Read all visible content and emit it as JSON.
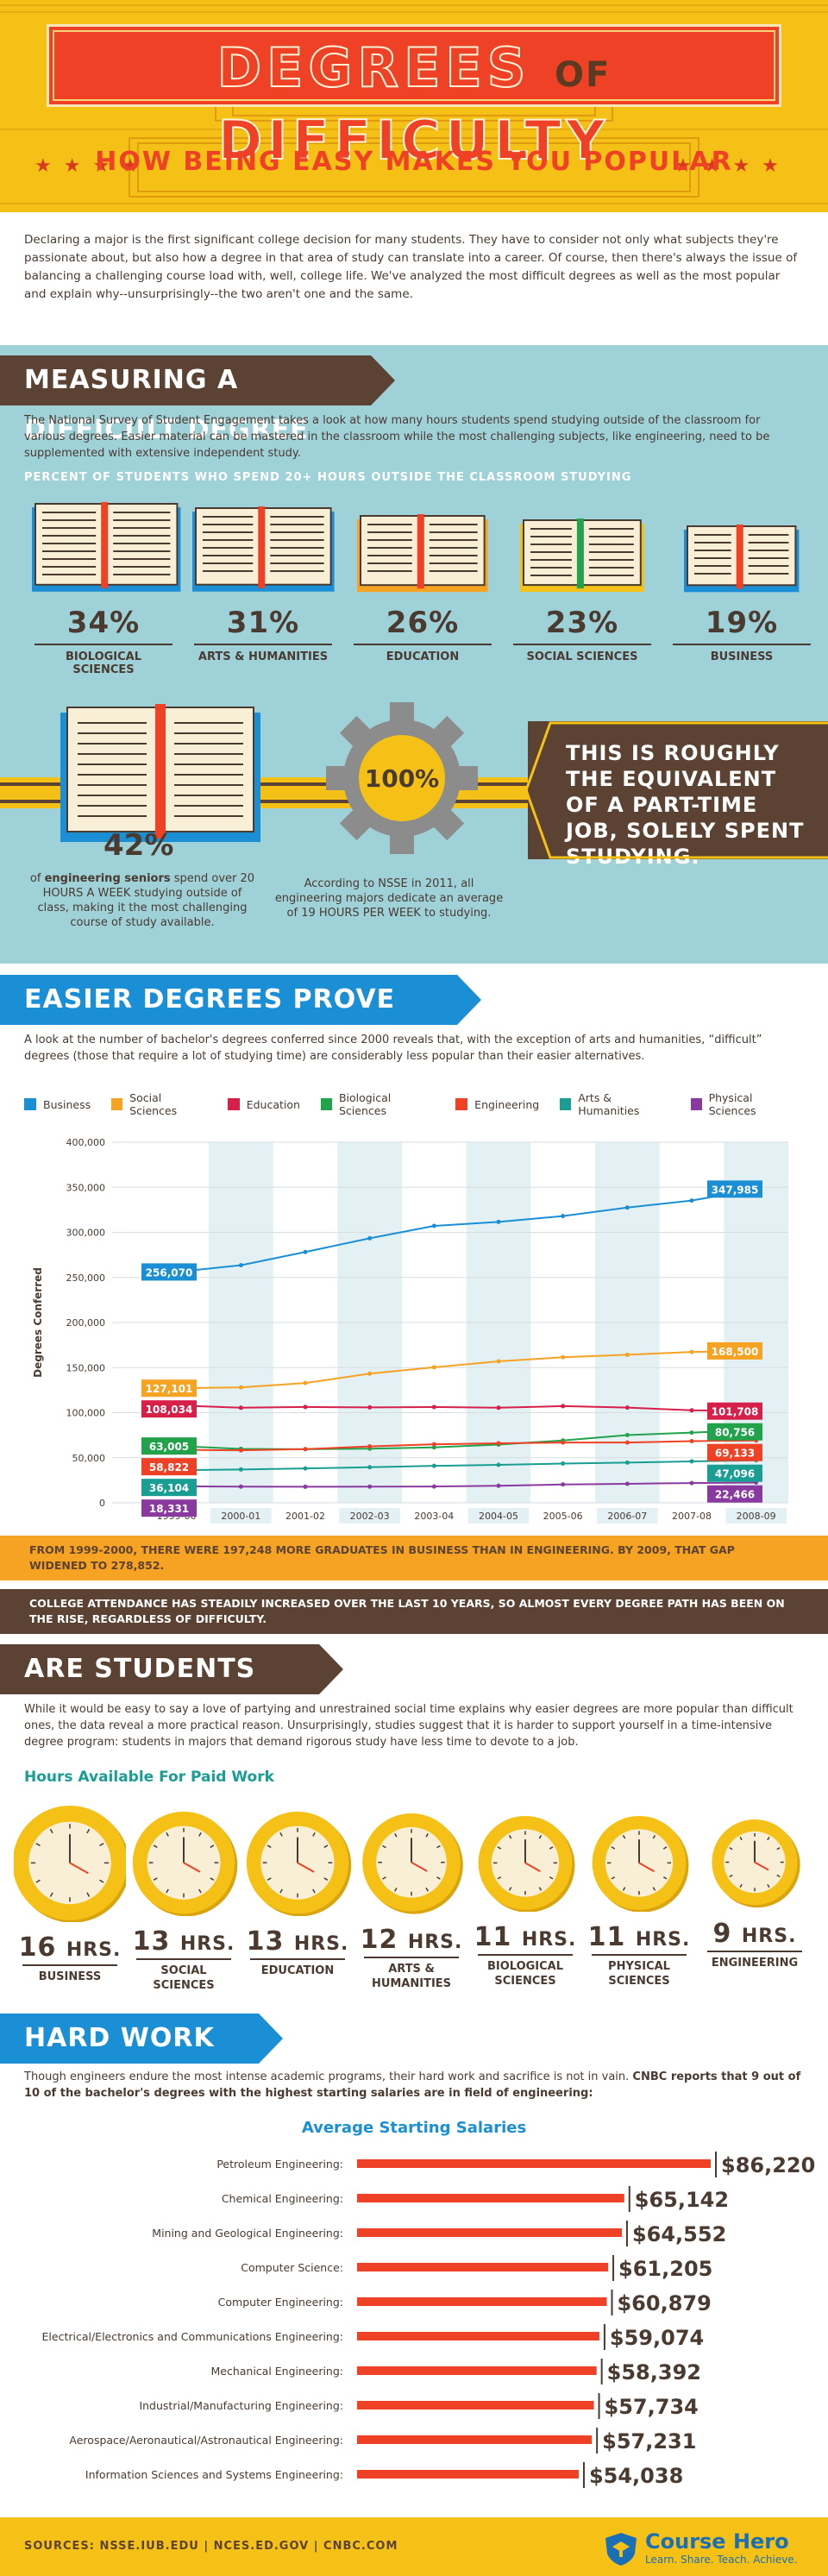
{
  "header": {
    "title_left": "DEGREES",
    "title_of": "OF",
    "title_right": "DIFFICULTY",
    "subtitle": "HOW BEING EASY MAKES YOU POPULAR"
  },
  "intro": "Declaring a major is the first significant college decision for many students. They have to consider not only what subjects they're passionate about, but also how a degree in that area of study can translate into a career. Of course, then there's always the issue of balancing a challenging course load with, well, college life. We've analyzed the most difficult degrees as well as the most popular and explain why--unsurprisingly--the two aren't one and the same.",
  "section1": {
    "title": "MEASURING A DIFFICULT DEGREE",
    "para": "The National Survey of Student Engagement takes a look at how many hours students spend studying outside of the classroom for various degrees. Easier material can be mastered in the classroom while the most challenging subjects, like engineering, need to be supplemented with extensive independent study.",
    "subhead": "PERCENT OF STUDENTS WHO SPEND 20+ HOURS OUTSIDE THE CLASSROOM STUDYING",
    "books": [
      {
        "pct": "34%",
        "label": "BIOLOGICAL SCIENCES",
        "value": 34
      },
      {
        "pct": "31%",
        "label": "ARTS & HUMANITIES",
        "value": 31
      },
      {
        "pct": "26%",
        "label": "EDUCATION",
        "value": 26
      },
      {
        "pct": "23%",
        "label": "SOCIAL SCIENCES",
        "value": 23
      },
      {
        "pct": "19%",
        "label": "BUSINESS",
        "value": 19
      }
    ],
    "eng_pct": "42%",
    "eng_desc_pre": "of ",
    "eng_desc_bold": "engineering seniors",
    "eng_desc_post": " spend over 20 HOURS A WEEK studying outside of class, making it the most challenging course of study available.",
    "gear_pct": "100%",
    "nsse_desc": "According to NSSE in 2011, all engineering majors dedicate an average of 19 HOURS PER WEEK to studying.",
    "box_text": "THIS IS ROUGHLY THE EQUIVALENT OF A PART-TIME JOB, SOLELY SPENT STUDYING."
  },
  "section2": {
    "title": "EASIER DEGREES PROVE MORE POPULAR",
    "para": "A look at the number of bachelor's degrees conferred since 2000 reveals that, with the exception of arts and humanities, “difficult” degrees (those that require a lot of studying time) are considerably less popular than their easier alternatives.",
    "callout1": "FROM 1999-2000, THERE WERE 197,248 MORE GRADUATES IN BUSINESS THAN IN ENGINEERING. BY 2009, THAT GAP WIDENED TO 278,852.",
    "callout2": "COLLEGE ATTENDANCE HAS STEADILY INCREASED OVER THE LAST 10 YEARS, SO ALMOST EVERY DEGREE PATH HAS BEEN ON THE RISE, REGARDLESS OF DIFFICULTY."
  },
  "section3": {
    "title": "ARE STUDENTS JUST LAZY?",
    "para": "While it would be easy to say a love of partying and unrestrained social time explains why easier degrees are more popular than difficult ones, the data reveal a more practical reason. Unsurprisingly, studies suggest that it is harder to support yourself in a time-intensive degree program: students in majors that demand rigorous study have less time to devote to a job.",
    "subhead": "Hours Available For Paid Work",
    "unit": "HRS.",
    "clocks": [
      {
        "hours": "16",
        "label": "BUSINESS",
        "value": 16
      },
      {
        "hours": "13",
        "label": "SOCIAL SCIENCES",
        "value": 13
      },
      {
        "hours": "13",
        "label": "EDUCATION",
        "value": 13
      },
      {
        "hours": "12",
        "label": "ARTS & HUMANITIES",
        "value": 12
      },
      {
        "hours": "11",
        "label": "BIOLOGICAL SCIENCES",
        "value": 11
      },
      {
        "hours": "11",
        "label": "PHYSICAL SCIENCES",
        "value": 11
      },
      {
        "hours": "9",
        "label": "ENGINEERING",
        "value": 9
      }
    ]
  },
  "section4": {
    "title": "HARD WORK PAYS OFF",
    "para_pre": "Though engineers endure the most intense academic programs, their hard work and sacrifice is not in vain. ",
    "para_bold": "CNBC reports that 9 out of 10 of the bachelor's degrees with the highest starting salaries are in field of engineering:"
  },
  "footer": {
    "sources": "SOURCES: NSSE.IUB.EDU | NCES.ED.GOV | CNBC.COM",
    "logo_name": "Course Hero",
    "logo_tag": "Learn. Share. Teach. Achieve."
  },
  "colors": {
    "business": "#1b8fd6",
    "social": "#f6a223",
    "education": "#d6204a",
    "biological": "#22a24a",
    "engineering": "#ee4125",
    "arts": "#1a9e94",
    "physical": "#8a3a9e",
    "teal_bg": "#9fd1d8",
    "brown": "#5b4232",
    "yellow": "#f5c116"
  },
  "chart_data": [
    {
      "type": "line",
      "title": "",
      "ylabel": "Degrees Conferred",
      "xlabel": "",
      "x": [
        "1999-00",
        "2000-01",
        "2001-02",
        "2002-03",
        "2003-04",
        "2004-05",
        "2005-06",
        "2006-07",
        "2007-08",
        "2008-09"
      ],
      "ylim": [
        0,
        400000
      ],
      "yticks": [
        "0",
        "50,000",
        "100,000",
        "150,000",
        "200,000",
        "250,000",
        "300,000",
        "350,000",
        "400,000"
      ],
      "legend_position": "top",
      "series": [
        {
          "name": "Business",
          "color": "#1b8fd6",
          "start_label": "256,070",
          "end_label": "347,985",
          "values": [
            256070,
            263515,
            278217,
            293391,
            307149,
            311574,
            318042,
            327531,
            335254,
            347985
          ]
        },
        {
          "name": "Social Sciences",
          "color": "#f6a223",
          "start_label": "127,101",
          "end_label": "168,500",
          "values": [
            127101,
            128036,
            132874,
            143256,
            150357,
            156892,
            161485,
            164183,
            167363,
            168500
          ]
        },
        {
          "name": "Education",
          "color": "#d6204a",
          "start_label": "108,034",
          "end_label": "101,708",
          "values": [
            108034,
            105458,
            106295,
            105845,
            106278,
            105451,
            107238,
            105641,
            102582,
            101708
          ]
        },
        {
          "name": "Biological Sciences",
          "color": "#22a24a",
          "start_label": "63,005",
          "end_label": "80,756",
          "values": [
            63005,
            59865,
            59415,
            60104,
            61509,
            64611,
            69178,
            75151,
            77854,
            80756
          ]
        },
        {
          "name": "Engineering",
          "color": "#ee4125",
          "start_label": "58,822",
          "end_label": "69,133",
          "values": [
            58822,
            58209,
            59536,
            62541,
            64906,
            66076,
            66841,
            66874,
            68431,
            69133
          ]
        },
        {
          "name": "Arts & Humanities",
          "color": "#1a9e94",
          "start_label": "36,104",
          "end_label": "47,096",
          "values": [
            36104,
            37013,
            38153,
            39456,
            40981,
            42109,
            43525,
            44616,
            45985,
            47096
          ]
        },
        {
          "name": "Physical Sciences",
          "color": "#8a3a9e",
          "start_label": "18,331",
          "end_label": "22,466",
          "values": [
            18331,
            17979,
            17799,
            17950,
            18070,
            18905,
            20318,
            21073,
            21934,
            22466
          ]
        }
      ]
    },
    {
      "type": "bar",
      "title": "Average Starting Salaries",
      "orientation": "horizontal",
      "categories": [
        "Petroleum Engineering:",
        "Chemical Engineering:",
        "Mining and Geological Engineering:",
        "Computer Science:",
        "Computer Engineering:",
        "Electrical/Electronics and Communications Engineering:",
        "Mechanical Engineering:",
        "Industrial/Manufacturing Engineering:",
        "Aerospace/Aeronautical/Astronautical Engineering:",
        "Information Sciences and Systems Engineering:"
      ],
      "values": [
        86220,
        65142,
        64552,
        61205,
        60879,
        59074,
        58392,
        57734,
        57231,
        54038
      ],
      "labels": [
        "$86,220",
        "$65,142",
        "$64,552",
        "$61,205",
        "$60,879",
        "$59,074",
        "$58,392",
        "$57,734",
        "$57,231",
        "$54,038"
      ],
      "color": "#ee4125"
    }
  ]
}
